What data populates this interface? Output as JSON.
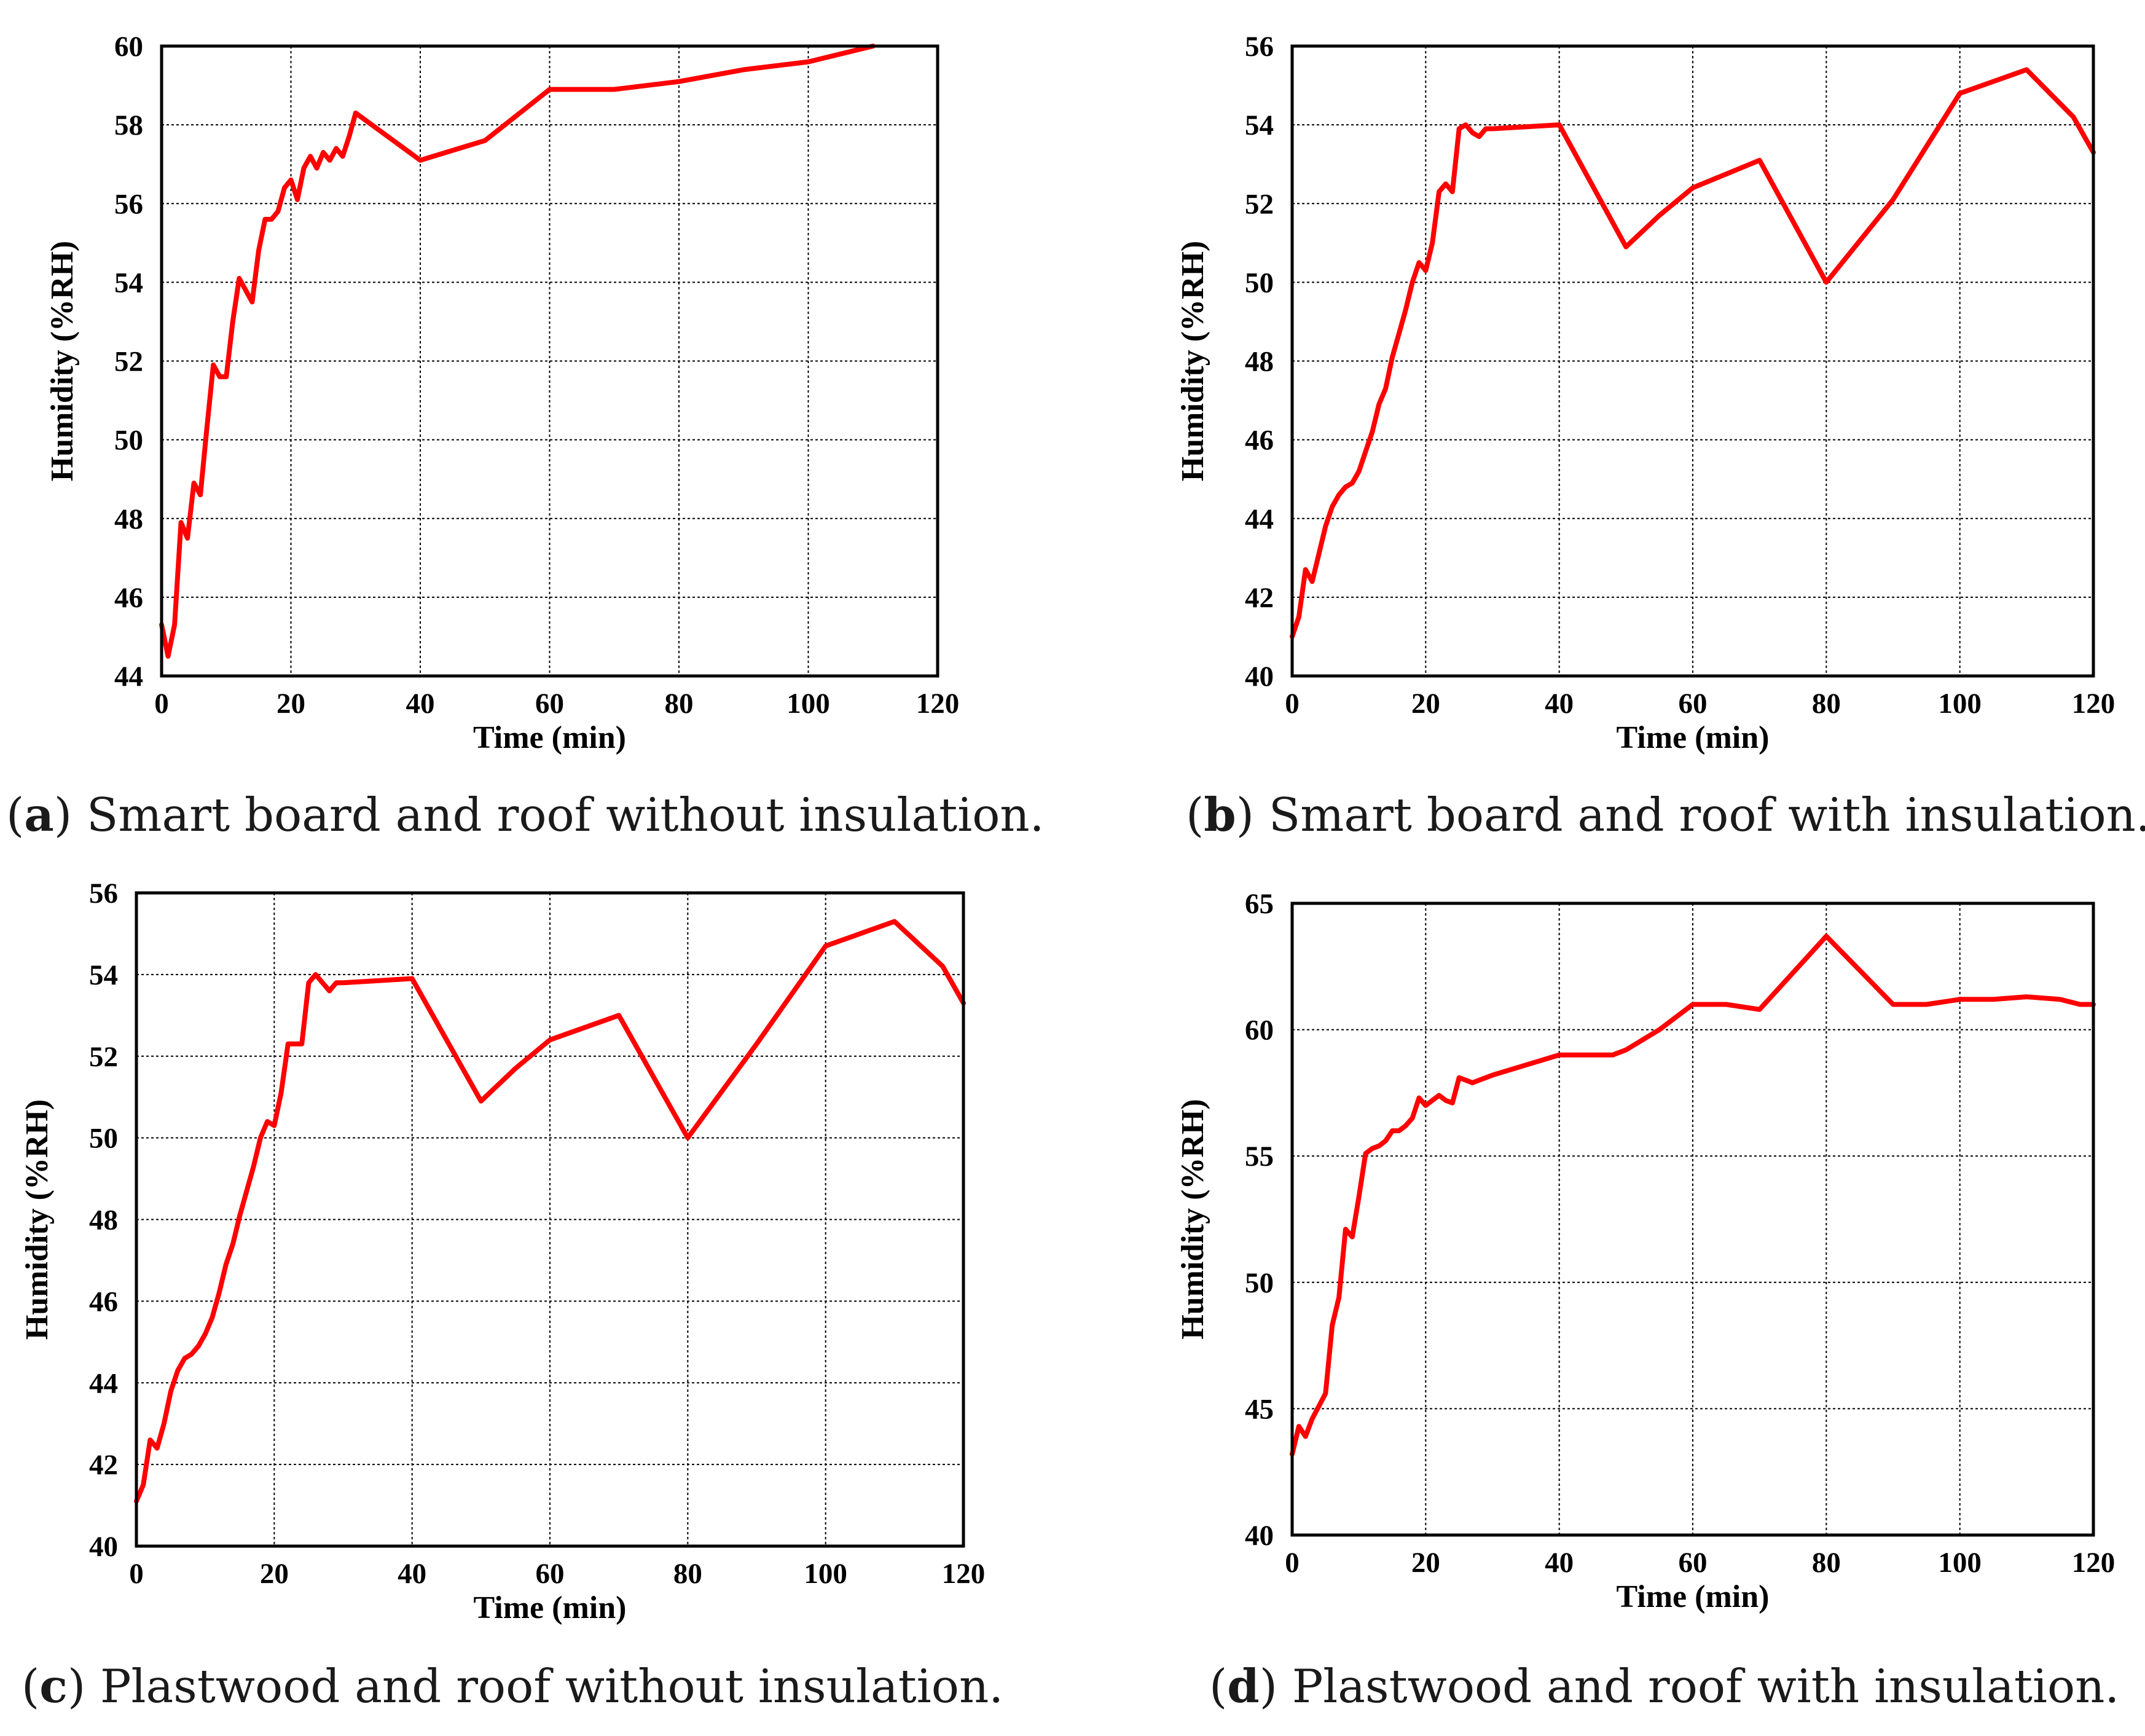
{
  "chart_data": [
    {
      "type": "line",
      "panel_label": "a",
      "caption": "Smart board and roof without insulation.",
      "xlabel": "Time (min)",
      "ylabel": "Humidity (%RH)",
      "xlim": [
        0,
        120
      ],
      "ylim": [
        44,
        60
      ],
      "xticks": [
        0,
        20,
        40,
        60,
        80,
        100,
        120
      ],
      "yticks": [
        44,
        46,
        48,
        50,
        52,
        54,
        56,
        58,
        60
      ],
      "grid": true,
      "color": "#ff0000",
      "x": [
        0,
        1,
        2,
        3,
        4,
        5,
        6,
        7,
        8,
        9,
        10,
        11,
        12,
        13,
        14,
        15,
        16,
        17,
        18,
        19,
        20,
        21,
        22,
        23,
        24,
        25,
        26,
        27,
        28,
        29,
        30,
        40,
        50,
        60,
        70,
        80,
        90,
        100,
        110
      ],
      "y": [
        45.3,
        44.5,
        45.3,
        47.9,
        47.5,
        48.9,
        48.6,
        50.3,
        51.9,
        51.6,
        51.6,
        53.0,
        54.1,
        53.8,
        53.5,
        54.8,
        55.6,
        55.6,
        55.8,
        56.4,
        56.6,
        56.1,
        56.9,
        57.2,
        56.9,
        57.3,
        57.1,
        57.4,
        57.2,
        57.7,
        58.3,
        57.1,
        57.6,
        58.9,
        58.9,
        59.1,
        59.4,
        59.6,
        60.0
      ]
    },
    {
      "type": "line",
      "panel_label": "b",
      "caption": "Smart board and roof with insulation.",
      "xlabel": "Time (min)",
      "ylabel": "Humidity (%RH)",
      "xlim": [
        0,
        120
      ],
      "ylim": [
        40,
        56
      ],
      "xticks": [
        0,
        20,
        40,
        60,
        80,
        100,
        120
      ],
      "yticks": [
        40,
        42,
        44,
        46,
        48,
        50,
        52,
        54,
        56
      ],
      "grid": true,
      "color": "#ff0000",
      "x": [
        0,
        1,
        2,
        3,
        4,
        5,
        6,
        7,
        8,
        9,
        10,
        11,
        12,
        13,
        14,
        15,
        16,
        17,
        18,
        19,
        20,
        21,
        22,
        23,
        24,
        25,
        26,
        27,
        28,
        29,
        30,
        40,
        50,
        55,
        60,
        70,
        80,
        90,
        100,
        110,
        117,
        120
      ],
      "y": [
        41.0,
        41.5,
        42.7,
        42.4,
        43.1,
        43.8,
        44.3,
        44.6,
        44.8,
        44.9,
        45.2,
        45.7,
        46.2,
        46.9,
        47.3,
        48.1,
        48.7,
        49.3,
        50.0,
        50.5,
        50.3,
        51.0,
        52.3,
        52.5,
        52.3,
        53.9,
        54.0,
        53.8,
        53.7,
        53.9,
        53.9,
        54.0,
        50.9,
        51.7,
        52.4,
        53.1,
        50.0,
        52.1,
        54.8,
        55.4,
        54.2,
        53.3
      ]
    },
    {
      "type": "line",
      "panel_label": "c",
      "caption": "Plastwood and roof without insulation.",
      "xlabel": "Time (min)",
      "ylabel": "Humidity (%RH)",
      "xlim": [
        0,
        120
      ],
      "ylim": [
        40,
        56
      ],
      "xticks": [
        0,
        20,
        40,
        60,
        80,
        100,
        120
      ],
      "yticks": [
        40,
        42,
        44,
        46,
        48,
        50,
        52,
        54,
        56
      ],
      "grid": true,
      "color": "#ff0000",
      "x": [
        0,
        1,
        2,
        3,
        4,
        5,
        6,
        7,
        8,
        9,
        10,
        11,
        12,
        13,
        14,
        15,
        16,
        17,
        18,
        19,
        20,
        21,
        22,
        23,
        24,
        25,
        26,
        27,
        28,
        29,
        30,
        40,
        50,
        55,
        60,
        70,
        80,
        90,
        100,
        110,
        117,
        120
      ],
      "y": [
        41.1,
        41.5,
        42.6,
        42.4,
        43.0,
        43.8,
        44.3,
        44.6,
        44.7,
        44.9,
        45.2,
        45.6,
        46.2,
        46.9,
        47.4,
        48.1,
        48.7,
        49.3,
        50.0,
        50.4,
        50.3,
        51.1,
        52.3,
        52.3,
        52.3,
        53.8,
        54.0,
        53.8,
        53.6,
        53.8,
        53.8,
        53.9,
        50.9,
        51.7,
        52.4,
        53.0,
        50.0,
        52.3,
        54.7,
        55.3,
        54.2,
        53.3
      ]
    },
    {
      "type": "line",
      "panel_label": "d",
      "caption": "Plastwood and roof with insulation.",
      "xlabel": "Time (min)",
      "ylabel": "Humidity (%RH)",
      "xlim": [
        0,
        120
      ],
      "ylim": [
        40,
        65
      ],
      "xticks": [
        0,
        20,
        40,
        60,
        80,
        100,
        120
      ],
      "yticks": [
        40,
        45,
        50,
        55,
        60,
        65
      ],
      "grid": true,
      "color": "#ff0000",
      "x": [
        0,
        1,
        2,
        3,
        4,
        5,
        6,
        7,
        8,
        9,
        10,
        11,
        12,
        13,
        14,
        15,
        16,
        17,
        18,
        19,
        20,
        21,
        22,
        23,
        24,
        25,
        26,
        27,
        28,
        29,
        30,
        40,
        45,
        48,
        50,
        55,
        60,
        65,
        70,
        80,
        90,
        95,
        100,
        105,
        110,
        115,
        118,
        120
      ],
      "y": [
        43.2,
        44.3,
        43.9,
        44.6,
        45.1,
        45.6,
        48.3,
        49.4,
        52.1,
        51.8,
        53.4,
        55.1,
        55.3,
        55.4,
        55.6,
        56.0,
        56.0,
        56.2,
        56.5,
        57.3,
        57.0,
        57.2,
        57.4,
        57.2,
        57.1,
        58.1,
        58.0,
        57.9,
        58.0,
        58.1,
        58.2,
        59.0,
        59.0,
        59.0,
        59.2,
        60.0,
        61.0,
        61.0,
        60.8,
        63.7,
        61.0,
        61.0,
        61.2,
        61.2,
        61.3,
        61.2,
        61.0,
        61.0
      ]
    }
  ]
}
